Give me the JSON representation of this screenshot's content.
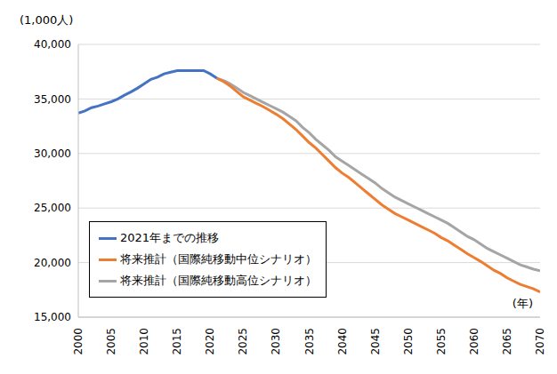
{
  "chart_data": {
    "type": "line",
    "y_label": "(1,000人)",
    "x_label": "(年)",
    "x": [
      2000,
      2001,
      2002,
      2003,
      2004,
      2005,
      2006,
      2007,
      2008,
      2009,
      2010,
      2011,
      2012,
      2013,
      2014,
      2015,
      2016,
      2017,
      2018,
      2019,
      2020,
      2021,
      2022,
      2023,
      2024,
      2025,
      2026,
      2027,
      2028,
      2029,
      2030,
      2031,
      2032,
      2033,
      2034,
      2035,
      2036,
      2037,
      2038,
      2039,
      2040,
      2041,
      2042,
      2043,
      2044,
      2045,
      2046,
      2047,
      2048,
      2049,
      2050,
      2051,
      2052,
      2053,
      2054,
      2055,
      2056,
      2057,
      2058,
      2059,
      2060,
      2061,
      2062,
      2063,
      2064,
      2065,
      2066,
      2067,
      2068,
      2069,
      2070
    ],
    "series": [
      {
        "name": "2021年までの推移",
        "color": "#4472c4",
        "values": [
          33700,
          33900,
          34200,
          34350,
          34550,
          34750,
          35000,
          35350,
          35650,
          36000,
          36400,
          36800,
          37000,
          37300,
          37450,
          37600,
          37600,
          37600,
          37600,
          37600,
          37300,
          36900,
          null,
          null,
          null,
          null,
          null,
          null,
          null,
          null,
          null,
          null,
          null,
          null,
          null,
          null,
          null,
          null,
          null,
          null,
          null,
          null,
          null,
          null,
          null,
          null,
          null,
          null,
          null,
          null,
          null,
          null,
          null,
          null,
          null,
          null,
          null,
          null,
          null,
          null,
          null,
          null,
          null,
          null,
          null,
          null,
          null,
          null,
          null,
          null,
          null
        ]
      },
      {
        "name": "将来推計（国際純移動中位シナリオ）",
        "color": "#ed7d31",
        "values": [
          null,
          null,
          null,
          null,
          null,
          null,
          null,
          null,
          null,
          null,
          null,
          null,
          null,
          null,
          null,
          null,
          null,
          null,
          null,
          null,
          null,
          36900,
          36600,
          36200,
          35700,
          35200,
          34900,
          34600,
          34300,
          33950,
          33600,
          33200,
          32700,
          32200,
          31600,
          31000,
          30500,
          29900,
          29300,
          28700,
          28200,
          27800,
          27300,
          26800,
          26300,
          25800,
          25300,
          24900,
          24500,
          24200,
          23900,
          23600,
          23300,
          23000,
          22700,
          22300,
          22000,
          21600,
          21200,
          20800,
          20450,
          20100,
          19700,
          19300,
          19000,
          18600,
          18300,
          18000,
          17800,
          17600,
          17300
        ]
      },
      {
        "name": "将来推計（国際純移動高位シナリオ）",
        "color": "#a5a5a5",
        "values": [
          null,
          null,
          null,
          null,
          null,
          null,
          null,
          null,
          null,
          null,
          null,
          null,
          null,
          null,
          null,
          null,
          null,
          null,
          null,
          null,
          null,
          36900,
          36700,
          36400,
          36000,
          35600,
          35300,
          35000,
          34700,
          34400,
          34100,
          33800,
          33400,
          33000,
          32400,
          31900,
          31300,
          30800,
          30300,
          29700,
          29300,
          28900,
          28500,
          28100,
          27700,
          27300,
          26800,
          26400,
          26000,
          25700,
          25400,
          25100,
          24800,
          24500,
          24200,
          23900,
          23600,
          23200,
          22800,
          22400,
          22100,
          21700,
          21300,
          21000,
          20700,
          20400,
          20100,
          19800,
          19600,
          19400,
          19250
        ]
      }
    ],
    "xlim": [
      2000,
      2070
    ],
    "xticks": [
      2000,
      2005,
      2010,
      2015,
      2020,
      2025,
      2030,
      2035,
      2040,
      2045,
      2050,
      2055,
      2060,
      2065,
      2070
    ],
    "ylim": [
      15000,
      40000
    ],
    "yticks": [
      {
        "value": 15000,
        "label": "15,000"
      },
      {
        "value": 20000,
        "label": "20,000"
      },
      {
        "value": 25000,
        "label": "25,000"
      },
      {
        "value": 30000,
        "label": "30,000"
      },
      {
        "value": 35000,
        "label": "35,000"
      },
      {
        "value": 40000,
        "label": "40,000"
      }
    ],
    "grid": true,
    "legend": "lower left"
  }
}
